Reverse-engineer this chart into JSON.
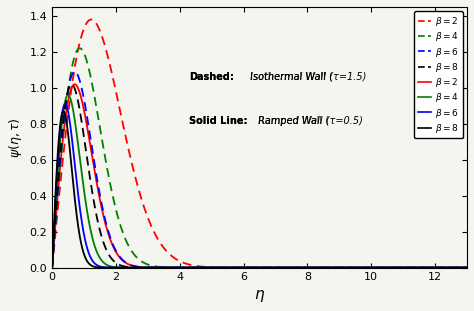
{
  "xlabel": "$\\eta$",
  "ylabel": "$\\psi(\\eta, \\tau)$",
  "xlim": [
    0,
    13
  ],
  "ylim": [
    0,
    1.45
  ],
  "xticks": [
    0,
    2,
    4,
    6,
    8,
    10,
    12
  ],
  "yticks": [
    0.0,
    0.2,
    0.4,
    0.6,
    0.8,
    1.0,
    1.2,
    1.4
  ],
  "beta_values": [
    2,
    4,
    6,
    8
  ],
  "colors": [
    "red",
    "green",
    "blue",
    "black"
  ],
  "tau_dashed": 1.5,
  "tau_solid": 0.5,
  "annotation_dashed_bold": "Dashed:",
  "annotation_dashed_normal": " Isothermal Wall (",
  "annotation_dashed_italic": "τ",
  "annotation_dashed_end": "=1.5)",
  "annotation_solid_bold": "Solid Line:",
  "annotation_solid_normal": " Ramped Wall (",
  "annotation_solid_italic": "τ",
  "annotation_solid_end": "=0.5)",
  "bg_color": "#f5f5f0",
  "legend_colors_dashed": [
    "red",
    "green",
    "blue",
    "black"
  ],
  "legend_colors_solid": [
    "red",
    "green",
    "blue",
    "black"
  ],
  "legend_labels": [
    "$\\beta =2$",
    "$\\beta =4$",
    "$\\beta =6$",
    "$\\beta =8$"
  ],
  "peak_scale_dashed": 1.0,
  "peak_scale_solid": 1.0,
  "n_points": 2000,
  "eta_max": 13.0,
  "linewidth": 1.3
}
